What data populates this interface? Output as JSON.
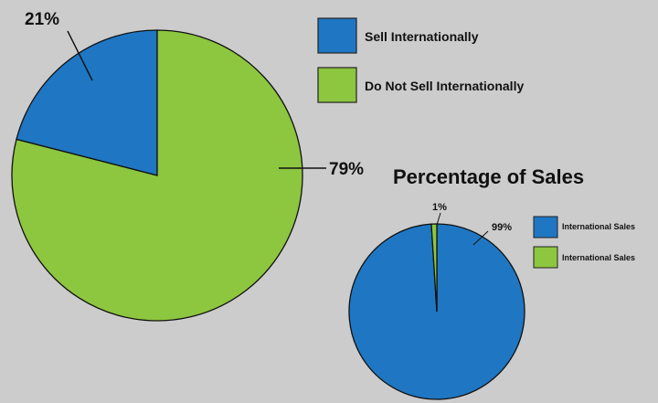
{
  "chart_data": [
    {
      "type": "pie",
      "title": "",
      "categories": [
        "Sell Internationally",
        "Do Not Sell Internationally"
      ],
      "values": [
        21,
        79
      ],
      "data_labels": [
        "21%",
        "79%"
      ],
      "colors": [
        "#1f77c3",
        "#8dc63f"
      ],
      "legend": {
        "placement": "top-right",
        "entries": [
          "Sell Internationally",
          "Do Not Sell Internationally"
        ]
      }
    },
    {
      "type": "pie",
      "title": "Percentage of Sales",
      "categories": [
        "International Sales",
        "International Sales"
      ],
      "values": [
        99,
        1
      ],
      "data_labels": [
        "99%",
        "1%"
      ],
      "colors": [
        "#1f77c3",
        "#8dc63f"
      ],
      "legend": {
        "placement": "right",
        "entries": [
          "International Sales",
          "International Sales"
        ]
      }
    }
  ]
}
